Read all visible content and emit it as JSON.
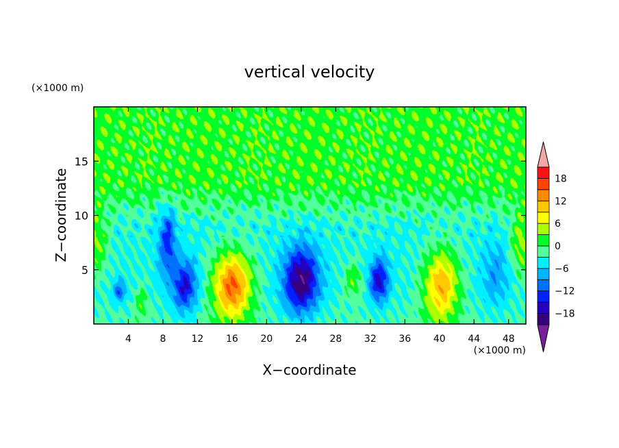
{
  "chart_data": {
    "type": "heatmap",
    "title": "vertical velocity",
    "xlabel": "X−coordinate",
    "ylabel": "Z−coordinate",
    "x_unit_label": "(×1000 m)",
    "y_unit_label": "(×1000 m)",
    "xlim": [
      0,
      50
    ],
    "ylim": [
      0,
      20
    ],
    "x_ticks": [
      4,
      8,
      12,
      16,
      20,
      24,
      28,
      32,
      36,
      40,
      44,
      48
    ],
    "y_ticks": [
      5,
      10,
      15
    ],
    "colorbar": {
      "levels": [
        -21,
        -18,
        -15,
        -12,
        -9,
        -6,
        -3,
        0,
        3,
        6,
        9,
        12,
        15,
        18,
        21
      ],
      "colors": [
        "#7a1fa0",
        "#38007c",
        "#2600c0",
        "#0022ff",
        "#0070ff",
        "#00b4ff",
        "#00f0ff",
        "#53ff9b",
        "#00ff2a",
        "#aaff00",
        "#ffff00",
        "#ffc800",
        "#ff8a00",
        "#ff4400",
        "#ff1010",
        "#f5a6a6"
      ],
      "tick_values": [
        -18,
        -12,
        -6,
        0,
        6,
        12,
        18
      ],
      "tick_labels": [
        "−18",
        "−12",
        "−6",
        "0",
        "6",
        "12",
        "18"
      ]
    },
    "features": [
      {
        "x": 16.0,
        "z": 3.5,
        "peak": 19,
        "rx": 2.2,
        "rz": 3.0
      },
      {
        "x": 40.2,
        "z": 3.5,
        "peak": 15,
        "rx": 2.0,
        "rz": 3.2
      },
      {
        "x": 30.0,
        "z": 4.0,
        "peak": 6,
        "rx": 1.1,
        "rz": 1.6
      },
      {
        "x": 0.3,
        "z": 7.5,
        "peak": 7,
        "rx": 1.3,
        "rz": 3.0
      },
      {
        "x": 49.5,
        "z": 7.5,
        "peak": 8,
        "rx": 1.3,
        "rz": 3.0
      },
      {
        "x": 5.5,
        "z": 2.0,
        "peak": 5,
        "rx": 0.8,
        "rz": 1.5
      },
      {
        "x": 24.0,
        "z": 4.0,
        "peak": -17,
        "rx": 2.0,
        "rz": 3.0
      },
      {
        "x": 10.5,
        "z": 3.5,
        "peak": -12,
        "rx": 1.4,
        "rz": 2.4
      },
      {
        "x": 8.5,
        "z": 7.5,
        "peak": -10,
        "rx": 1.0,
        "rz": 3.2
      },
      {
        "x": 33.0,
        "z": 4.0,
        "peak": -13,
        "rx": 1.1,
        "rz": 2.0
      },
      {
        "x": 3.0,
        "z": 3.0,
        "peak": -8,
        "rx": 0.7,
        "rz": 1.0
      },
      {
        "x": 46.5,
        "z": 4.5,
        "peak": -5,
        "rx": 1.6,
        "rz": 3.0
      }
    ],
    "background": {
      "upper_level": 2,
      "mid_level": -3.5,
      "surface_level": -2
    }
  }
}
